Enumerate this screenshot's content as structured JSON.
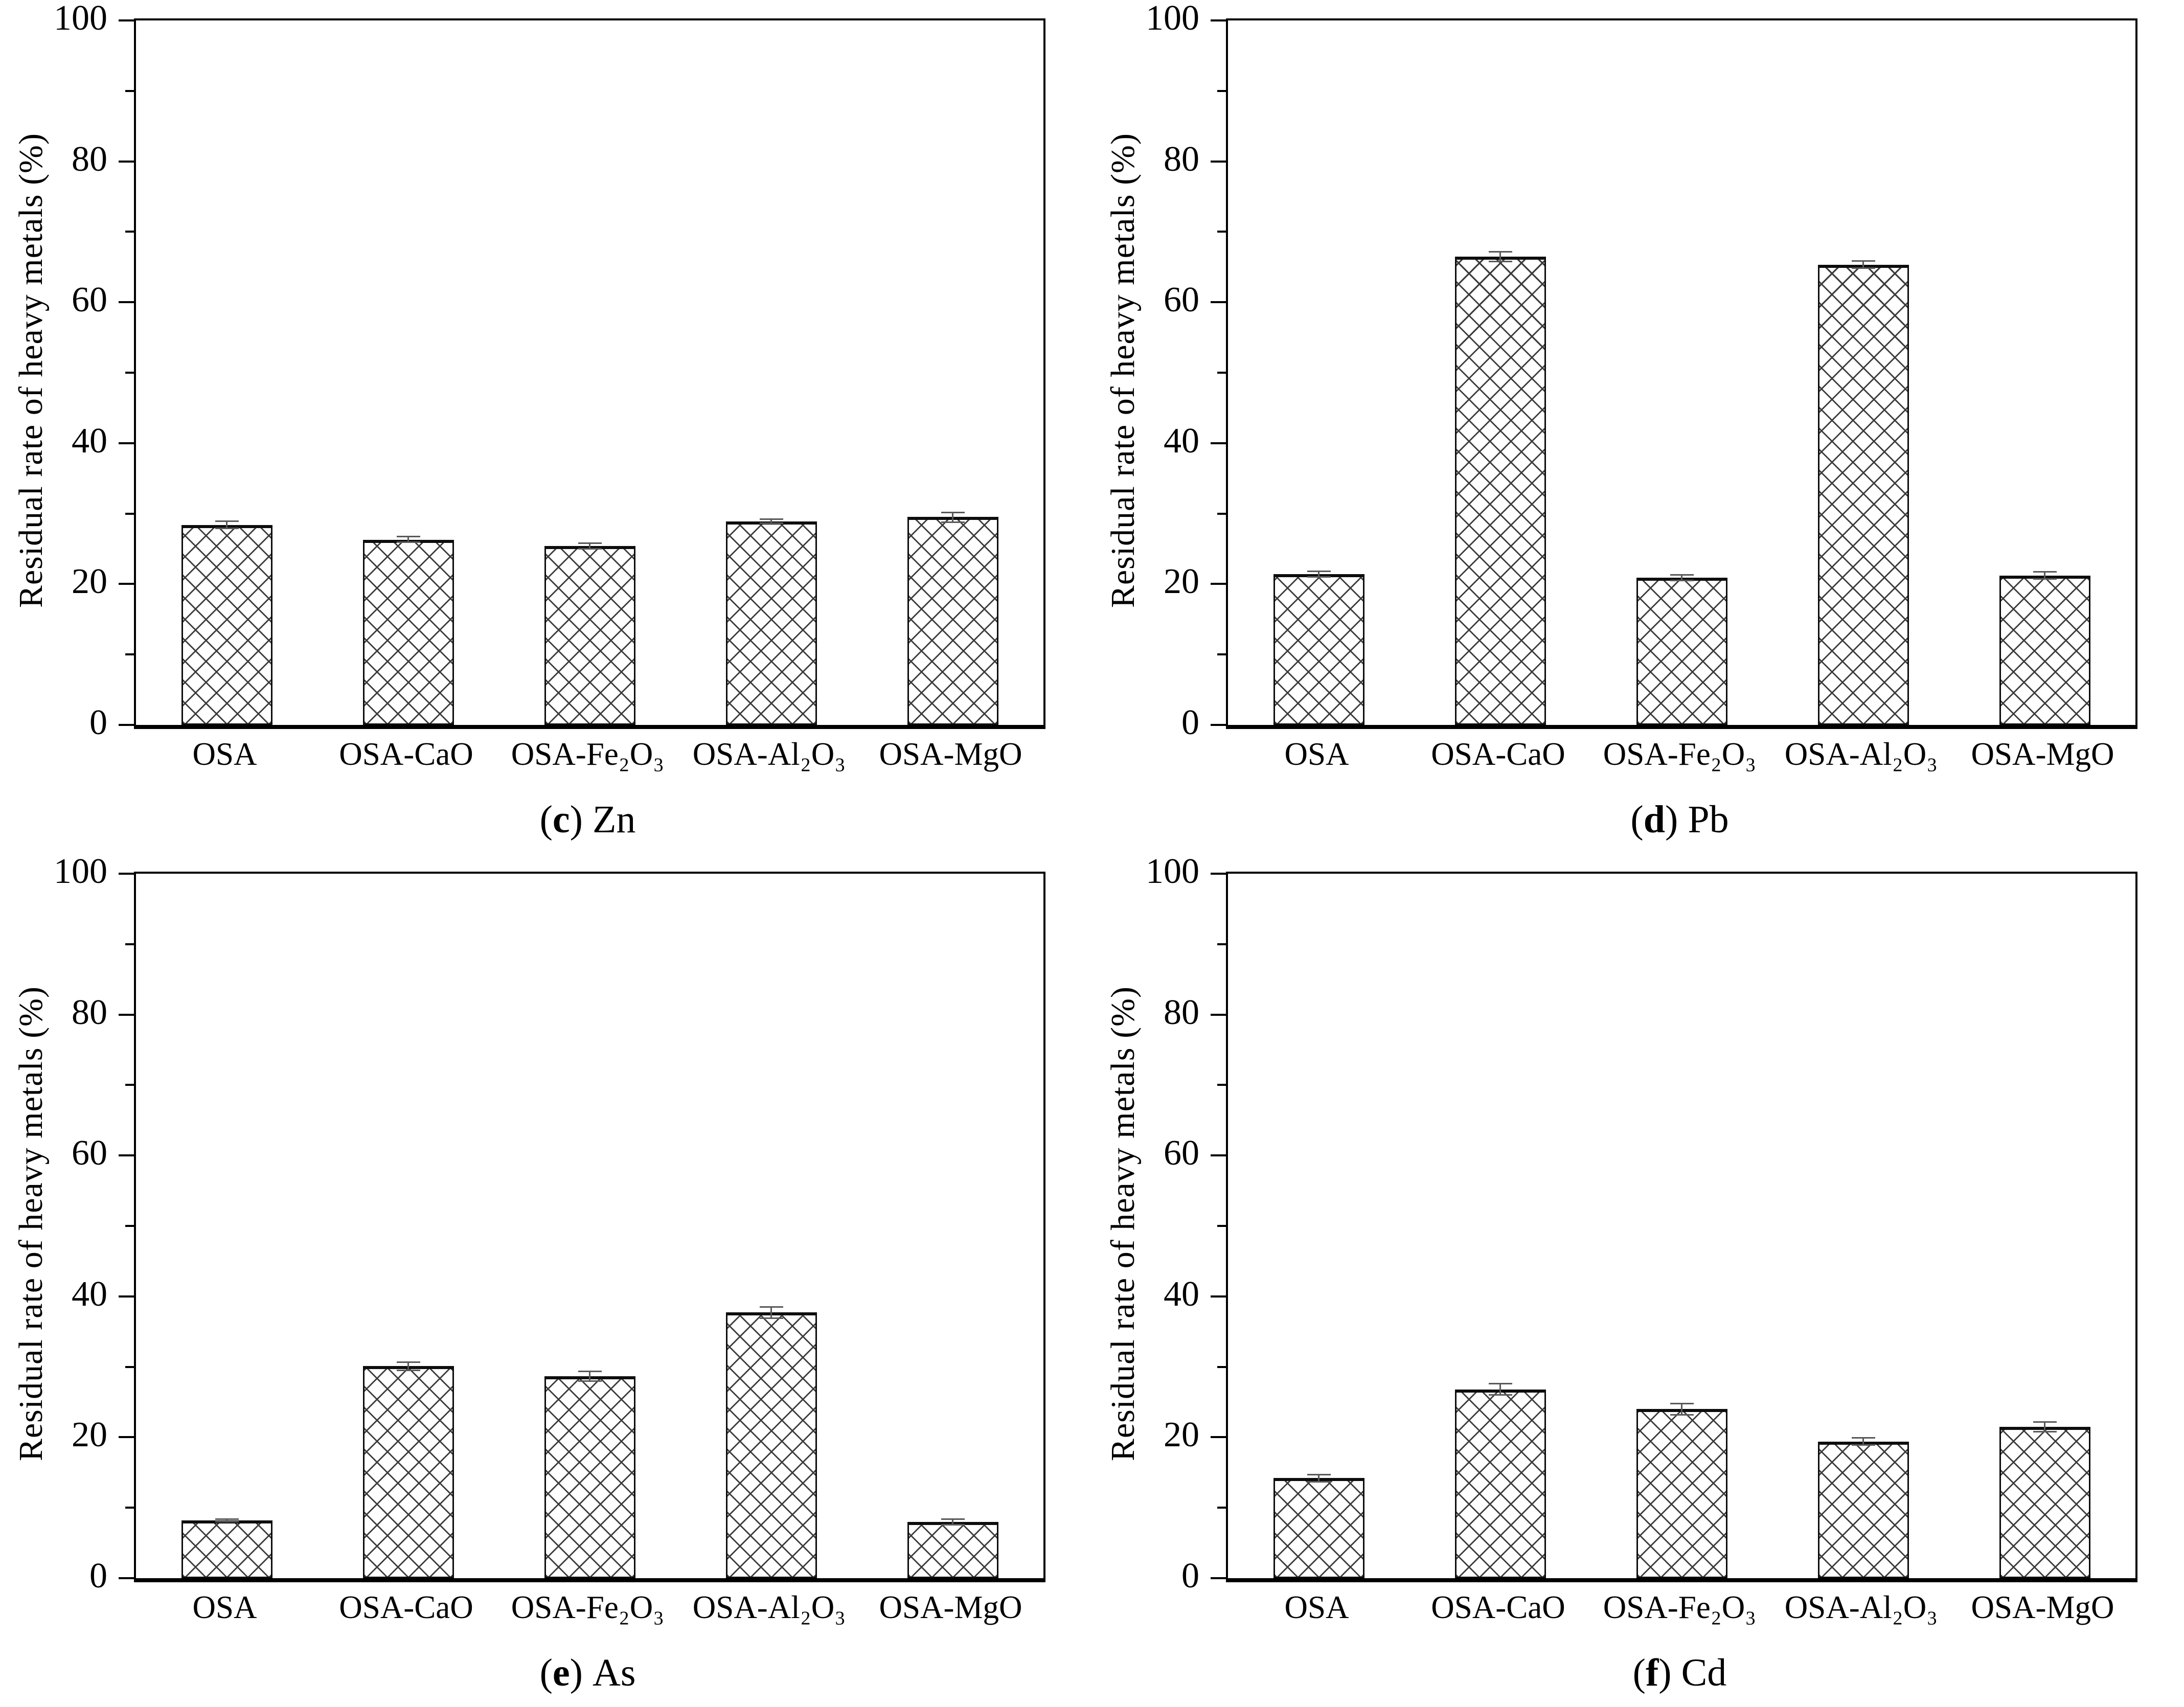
{
  "page": {
    "background": "#ffffff",
    "text_color": "#000000",
    "hatch_color": "#3c3c3c",
    "error_bar_color": "#595959"
  },
  "chart_data": [
    {
      "type": "bar",
      "panel": {
        "open": "(",
        "letter": "c",
        "close": ")",
        "metal": "Zn"
      },
      "title": "(c) Zn",
      "xlabel": "",
      "ylabel": "Residual rate of heavy metals (%)",
      "ylim": [
        0,
        100
      ],
      "yticks": [
        0,
        20,
        40,
        60,
        80,
        100
      ],
      "minor_yticks": [
        10,
        30,
        50,
        70,
        90
      ],
      "grid": "off",
      "legend": "none",
      "bar_fill": "crosshatch",
      "categories": [
        "OSA",
        "OSA-CaO",
        "OSA-Fe₂O₃",
        "OSA-Al₂O₃",
        "OSA-MgO"
      ],
      "values": [
        28.4,
        26.3,
        25.4,
        28.9,
        29.5
      ],
      "errors": [
        0.6,
        0.5,
        0.5,
        0.4,
        0.8
      ]
    },
    {
      "type": "bar",
      "panel": {
        "open": "(",
        "letter": "d",
        "close": ")",
        "metal": "Pb"
      },
      "title": "(d) Pb",
      "xlabel": "",
      "ylabel": "Residual rate of heavy metals (%)",
      "ylim": [
        0,
        100
      ],
      "yticks": [
        0,
        20,
        40,
        60,
        80,
        100
      ],
      "minor_yticks": [
        10,
        30,
        50,
        70,
        90
      ],
      "grid": "off",
      "legend": "none",
      "bar_fill": "crosshatch",
      "categories": [
        "OSA",
        "OSA-CaO",
        "OSA-Fe₂O₃",
        "OSA-Al₂O₃",
        "OSA-MgO"
      ],
      "values": [
        21.4,
        66.5,
        20.9,
        65.3,
        21.2
      ],
      "errors": [
        0.5,
        0.8,
        0.5,
        0.6,
        0.6
      ]
    },
    {
      "type": "bar",
      "panel": {
        "open": "(",
        "letter": "e",
        "close": ")",
        "metal": "As"
      },
      "title": "(e) As",
      "xlabel": "",
      "ylabel": "Residual rate of heavy metals (%)",
      "ylim": [
        0,
        100
      ],
      "yticks": [
        0,
        20,
        40,
        60,
        80,
        100
      ],
      "minor_yticks": [
        10,
        30,
        50,
        70,
        90
      ],
      "grid": "off",
      "legend": "none",
      "bar_fill": "crosshatch",
      "categories": [
        "OSA",
        "OSA-CaO",
        "OSA-Fe₂O₃",
        "OSA-Al₂O₃",
        "OSA-MgO"
      ],
      "values": [
        8.2,
        30.1,
        28.7,
        37.7,
        8.0
      ],
      "errors": [
        0.3,
        0.7,
        0.8,
        0.9,
        0.5
      ]
    },
    {
      "type": "bar",
      "panel": {
        "open": "(",
        "letter": "f",
        "close": ")",
        "metal": "Cd"
      },
      "title": "(f) Cd",
      "xlabel": "",
      "ylabel": "Residual rate of heavy metals (%)",
      "ylim": [
        0,
        100
      ],
      "yticks": [
        0,
        20,
        40,
        60,
        80,
        100
      ],
      "minor_yticks": [
        10,
        30,
        50,
        70,
        90
      ],
      "grid": "off",
      "legend": "none",
      "bar_fill": "crosshatch",
      "categories": [
        "OSA",
        "OSA-CaO",
        "OSA-Fe₂O₃",
        "OSA-Al₂O₃",
        "OSA-MgO"
      ],
      "values": [
        14.2,
        26.8,
        24.0,
        19.4,
        21.5
      ],
      "errors": [
        0.6,
        0.9,
        0.9,
        0.6,
        0.8
      ]
    }
  ]
}
